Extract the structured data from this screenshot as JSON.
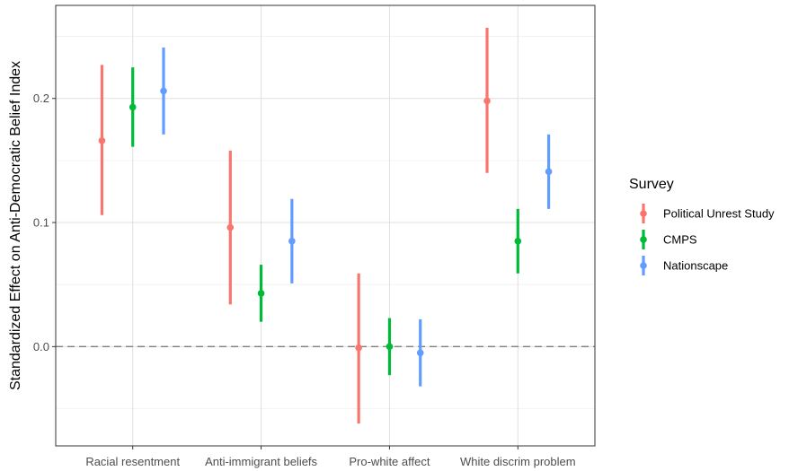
{
  "chart_data": {
    "type": "errorbar",
    "title": "",
    "xlabel": "",
    "ylabel": "Standardized Effect on Anti-Democratic Belief Index",
    "categories": [
      "Racial resentment",
      "Anti-immigrant beliefs",
      "Pro-white affect",
      "White discrim problem"
    ],
    "y_ticks": [
      0.0,
      0.1,
      0.2
    ],
    "y_tick_labels": [
      "0.0",
      "0.1",
      "0.2"
    ],
    "ylim": [
      -0.08,
      0.275
    ],
    "grid": true,
    "reference_line": {
      "y": 0.0,
      "style": "dashed"
    },
    "legend": {
      "title": "Survey",
      "position": "right"
    },
    "series": [
      {
        "name": "Political Unrest Study",
        "color": "#F8766D",
        "estimates": [
          0.166,
          0.096,
          -0.001,
          0.198
        ],
        "lower": [
          0.106,
          0.034,
          -0.062,
          0.14
        ],
        "upper": [
          0.227,
          0.158,
          0.059,
          0.257
        ]
      },
      {
        "name": "CMPS",
        "color": "#00BA38",
        "estimates": [
          0.193,
          0.043,
          0.0,
          0.085
        ],
        "lower": [
          0.161,
          0.02,
          -0.023,
          0.059
        ],
        "upper": [
          0.225,
          0.066,
          0.023,
          0.111
        ]
      },
      {
        "name": "Nationscape",
        "color": "#619CFF",
        "estimates": [
          0.206,
          0.085,
          -0.005,
          0.141
        ],
        "lower": [
          0.171,
          0.051,
          -0.032,
          0.111
        ],
        "upper": [
          0.241,
          0.119,
          0.022,
          0.171
        ]
      }
    ]
  }
}
